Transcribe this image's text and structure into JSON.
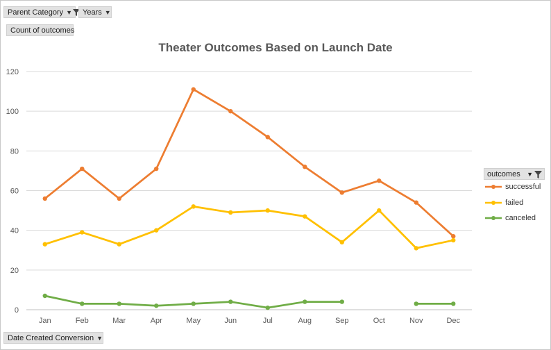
{
  "filters": {
    "parent_category_label": "Parent Category",
    "years_label": "Years",
    "values_label": "Count of outcomes",
    "axis_field_label": "Date Created Conversion"
  },
  "legend": {
    "header_label": "outcomes"
  },
  "chart_data": {
    "type": "line",
    "title": "Theater Outcomes Based on Launch Date",
    "xlabel": "",
    "ylabel": "",
    "categories": [
      "Jan",
      "Feb",
      "Mar",
      "Apr",
      "May",
      "Jun",
      "Jul",
      "Aug",
      "Sep",
      "Oct",
      "Nov",
      "Dec"
    ],
    "ylim": [
      0,
      120
    ],
    "yticks": [
      0,
      20,
      40,
      60,
      80,
      100,
      120
    ],
    "grid": true,
    "legend_position": "right",
    "series": [
      {
        "name": "successful",
        "color": "#ed7d31",
        "values": [
          56,
          71,
          56,
          71,
          111,
          100,
          87,
          72,
          59,
          65,
          54,
          37
        ]
      },
      {
        "name": "failed",
        "color": "#ffc000",
        "values": [
          33,
          39,
          33,
          40,
          52,
          49,
          50,
          47,
          34,
          50,
          31,
          35
        ]
      },
      {
        "name": "canceled",
        "color": "#70ad47",
        "values": [
          7,
          3,
          3,
          2,
          3,
          4,
          1,
          4,
          4,
          null,
          3,
          3
        ]
      }
    ]
  }
}
